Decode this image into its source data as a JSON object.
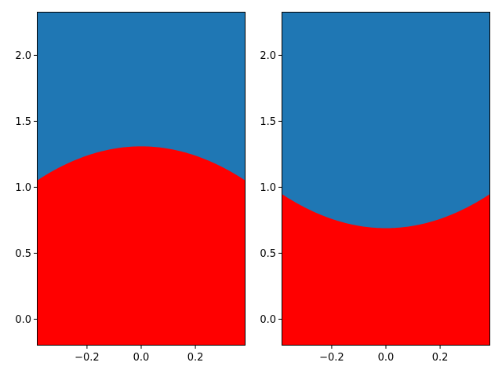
{
  "chart_data": [
    {
      "type": "area",
      "xlim": [
        -0.385,
        0.385
      ],
      "ylim": [
        -0.2,
        2.33
      ],
      "xticks": [
        "−0.2",
        "0.0",
        "0.2"
      ],
      "xtick_values": [
        -0.2,
        0.0,
        0.2
      ],
      "yticks": [
        "0.0",
        "0.5",
        "1.0",
        "1.5",
        "2.0"
      ],
      "ytick_values": [
        0.0,
        0.5,
        1.0,
        1.5,
        2.0
      ],
      "background_color": "#1f77b4",
      "fill_color": "#ff0000",
      "boundary": {
        "x": [
          -0.385,
          -0.3,
          -0.2,
          -0.1,
          0.0,
          0.1,
          0.2,
          0.3,
          0.385
        ],
        "y": [
          1.05,
          1.14,
          1.23,
          1.29,
          1.31,
          1.29,
          1.23,
          1.14,
          1.05
        ]
      },
      "grid": false
    },
    {
      "type": "area",
      "xlim": [
        -0.385,
        0.385
      ],
      "ylim": [
        -0.2,
        2.33
      ],
      "xticks": [
        "−0.2",
        "0.0",
        "0.2"
      ],
      "xtick_values": [
        -0.2,
        0.0,
        0.2
      ],
      "yticks": [
        "0.0",
        "0.5",
        "1.0",
        "1.5",
        "2.0"
      ],
      "ytick_values": [
        0.0,
        0.5,
        1.0,
        1.5,
        2.0
      ],
      "background_color": "#1f77b4",
      "fill_color": "#ff0000",
      "boundary": {
        "x": [
          -0.385,
          -0.3,
          -0.2,
          -0.1,
          0.0,
          0.1,
          0.2,
          0.3,
          0.385
        ],
        "y": [
          0.95,
          0.86,
          0.77,
          0.71,
          0.69,
          0.71,
          0.77,
          0.86,
          0.95
        ]
      },
      "grid": false
    }
  ]
}
